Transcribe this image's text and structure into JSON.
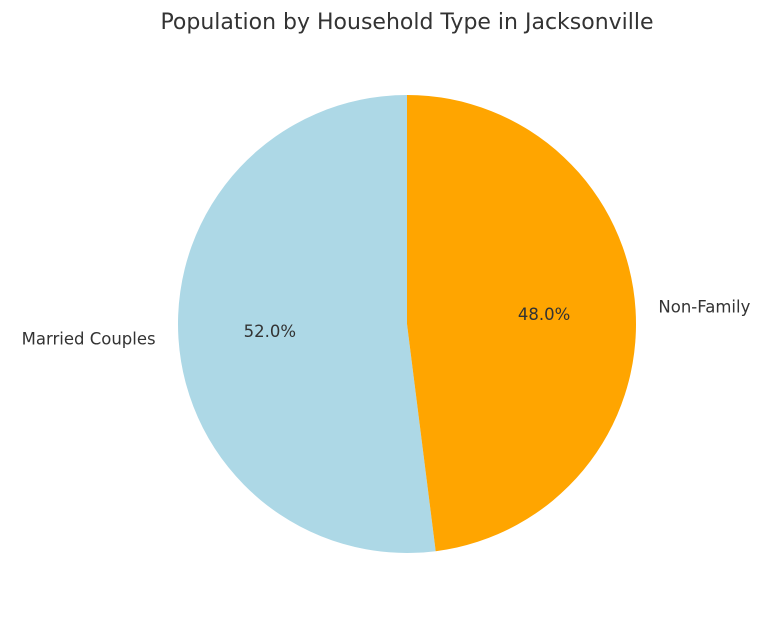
{
  "chart_data": {
    "type": "pie",
    "title": "Population by Household Type in Jacksonville",
    "categories": [
      "Married Couples",
      "Non-Family"
    ],
    "values": [
      52.0,
      48.0
    ],
    "value_labels": [
      "52.0%",
      "48.0%"
    ],
    "colors": [
      "#ADD8E6",
      "#FFA500"
    ],
    "start_angle_deg": 90,
    "direction": "counterclockwise",
    "legend": "none"
  }
}
